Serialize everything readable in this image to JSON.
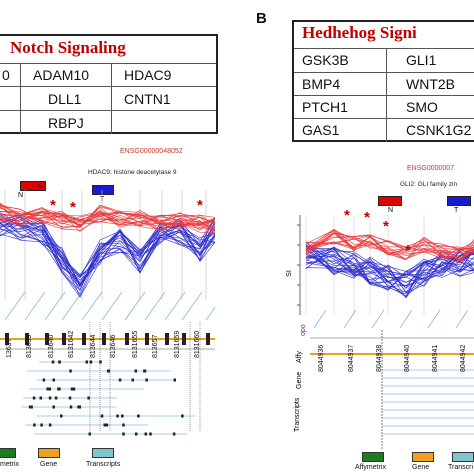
{
  "panelB_letter": "B",
  "notch": {
    "title": "Notch Signaling",
    "rows": [
      [
        "0",
        "ADAM10",
        "HDAC9"
      ],
      [
        "",
        "DLL1",
        "CNTN1"
      ],
      [
        "",
        "RBPJ",
        ""
      ]
    ]
  },
  "hedgehog": {
    "title": "Hedhehog Signi",
    "rows": [
      [
        "GSK3B",
        "GLI1"
      ],
      [
        "BMP4",
        "WNT2B"
      ],
      [
        "PTCH1",
        "SMO"
      ],
      [
        "GAS1",
        "CSNK1G2"
      ]
    ]
  },
  "left_plot": {
    "ensg": "ENSG00000048052",
    "gene_desc": "HDAC9: histone deacetylase 9",
    "badge_n": "N",
    "badge_t": "T",
    "probes": [
      "13637",
      "813639",
      "813640",
      "8131642",
      "813644",
      "813646",
      "8131655",
      "813657",
      "8131659",
      "8131660"
    ]
  },
  "right_plot": {
    "ensg": "ENSG0000007",
    "gene_desc": "GLI2: GLI family zin",
    "badge_n": "N",
    "badge_t": "T",
    "ylabel": "SI",
    "track_affy": "Affy",
    "track_gene": "Gene",
    "track_transcripts": "Transcripts",
    "probes": [
      "8044936",
      "8044937",
      "8044938",
      "8044940",
      "8044941",
      "8044942"
    ]
  },
  "legend_left": {
    "items": [
      {
        "label": "metrix",
        "color": "#1e7b1e"
      },
      {
        "label": "Gene",
        "color": "#f0a020"
      },
      {
        "label": "Transcripts",
        "color": "#7fc6d0"
      }
    ]
  },
  "legend_right": {
    "items": [
      {
        "label": "Affymetrix",
        "color": "#1e7b1e"
      },
      {
        "label": "Gene",
        "color": "#f0a020"
      },
      {
        "label": "Transcri",
        "color": "#7fc6d0"
      }
    ]
  },
  "colors": {
    "red_series": "#e8383b",
    "blue_series": "#2b2bcf",
    "title_red": "#c00000",
    "track_blue": "#4aa0c8",
    "gene_orange": "#e8a020",
    "badge_red": "#e00000",
    "badge_blue": "#1a1ad0"
  }
}
